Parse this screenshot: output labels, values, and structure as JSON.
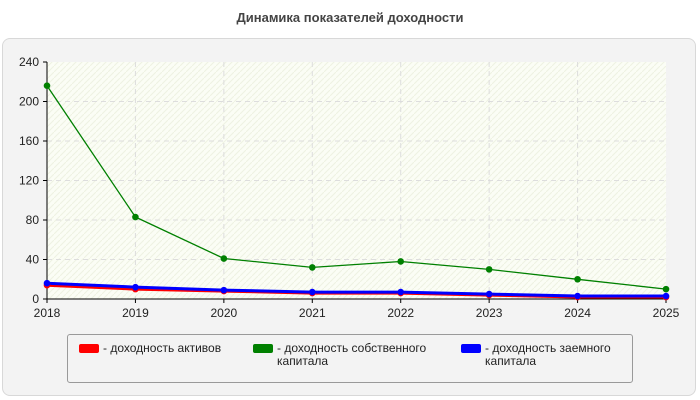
{
  "chart_data": {
    "type": "line",
    "title": "Динамика показателей доходности",
    "xlabel": "",
    "ylabel": "",
    "categories": [
      "2018",
      "2019",
      "2020",
      "2021",
      "2022",
      "2023",
      "2024",
      "2025"
    ],
    "ylim": [
      0,
      240
    ],
    "yticks": [
      "0",
      "40",
      "80",
      "120",
      "160",
      "200",
      "240"
    ],
    "grid": true,
    "legend_position": "bottom",
    "series": [
      {
        "name": "- доходность активов",
        "color": "#ff0000",
        "values": [
          14,
          10,
          8,
          6,
          6,
          4,
          2,
          2
        ]
      },
      {
        "name": "- доходность собственного капитала",
        "color": "#008000",
        "values": [
          216,
          83,
          41,
          32,
          38,
          30,
          20,
          10
        ]
      },
      {
        "name": "- доходность заемного капитала",
        "color": "#0000ff",
        "values": [
          16,
          12,
          9,
          7,
          7,
          5,
          3,
          3
        ]
      }
    ]
  }
}
